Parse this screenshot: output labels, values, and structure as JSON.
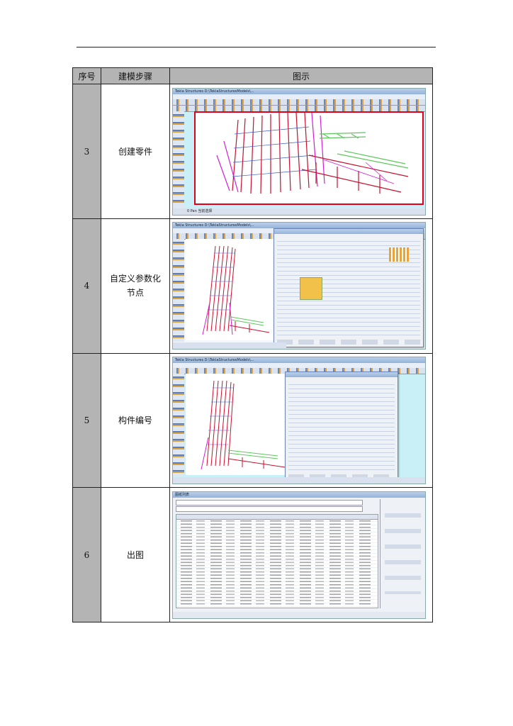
{
  "table": {
    "headers": {
      "num": "序号",
      "step": "建模步骤",
      "figure": "图示"
    },
    "rows": [
      {
        "num": "3",
        "step": "创建零件",
        "shot": {
          "window_title": "Tekla Structures  D:\\TeklaStructuresModels\\...",
          "status": "0     Pan     当前选择"
        }
      },
      {
        "num": "4",
        "step_line1": "自定义参数化",
        "step_line2": "节点",
        "shot": {
          "window_title": "Tekla Structures  D:\\TeklaStructuresModels\\..."
        }
      },
      {
        "num": "5",
        "step": "构件编号",
        "shot": {
          "window_title": "Tekla Structures  D:\\TeklaStructuresModels\\..."
        }
      },
      {
        "num": "6",
        "step": "出图",
        "shot": {
          "window_title": "图纸列表"
        }
      }
    ]
  },
  "colors": {
    "header_bg": "#b4b4b4",
    "number_bg": "#b4b4b4",
    "frame_bg": "#c8f0f6",
    "model_red": "#c8102e",
    "model_magenta": "#d21ed2",
    "model_green": "#5cc85c",
    "model_blue": "#3a5bd0",
    "viewport_border": "#e0001b"
  }
}
